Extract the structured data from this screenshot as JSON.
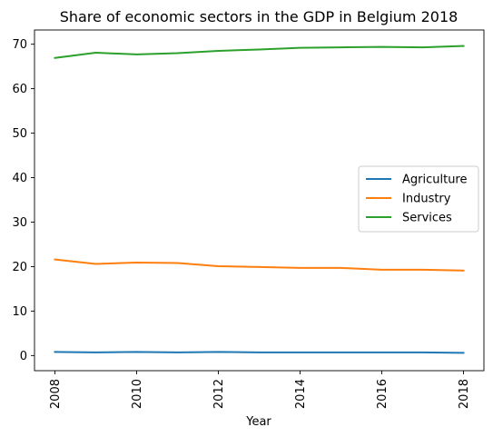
{
  "chart_data": {
    "type": "line",
    "title": "Share of economic sectors in the GDP in Belgium 2018",
    "xlabel": "Year",
    "ylabel": "",
    "x": [
      2008,
      2009,
      2010,
      2011,
      2012,
      2013,
      2014,
      2015,
      2016,
      2017,
      2018
    ],
    "xticks": [
      2008,
      2010,
      2012,
      2014,
      2016,
      2018
    ],
    "yticks": [
      0,
      10,
      20,
      30,
      40,
      50,
      60,
      70
    ],
    "xlim": [
      2007.5,
      2018.5
    ],
    "ylim": [
      -3.4,
      73.2
    ],
    "grid": false,
    "legend_position": "center-right",
    "series": [
      {
        "name": "Agriculture",
        "color": "#1f77b4",
        "values": [
          0.8,
          0.7,
          0.8,
          0.7,
          0.8,
          0.7,
          0.7,
          0.7,
          0.7,
          0.7,
          0.6
        ]
      },
      {
        "name": "Industry",
        "color": "#ff7f0e",
        "values": [
          21.6,
          20.6,
          20.9,
          20.8,
          20.1,
          19.9,
          19.7,
          19.7,
          19.3,
          19.3,
          19.1
        ]
      },
      {
        "name": "Services",
        "color": "#2ca02c",
        "values": [
          66.9,
          68.1,
          67.7,
          68.0,
          68.5,
          68.8,
          69.2,
          69.3,
          69.4,
          69.3,
          69.6
        ]
      }
    ]
  }
}
